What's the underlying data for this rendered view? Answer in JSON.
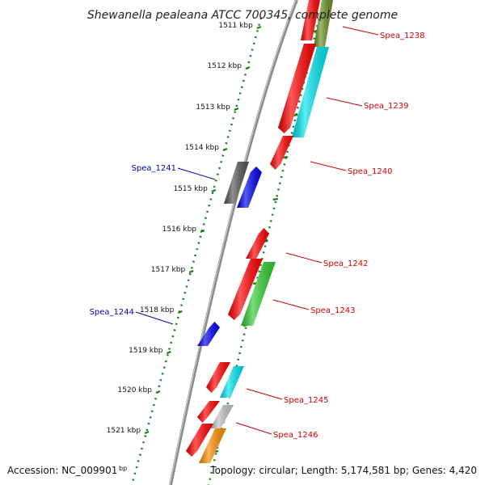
{
  "title": "Shewanella pealeana ATCC 700345, complete genome",
  "footer": {
    "accession": "Accession: NC_009901",
    "bp_suffix": "bp",
    "summary": "Topology: circular; Length: 5,174,581 bp; Genes: 4,420"
  },
  "kbp_labels": [
    "1511 kbp",
    "1512 kbp",
    "1513 kbp",
    "1514 kbp",
    "1515 kbp",
    "1516 kbp",
    "1517 kbp",
    "1518 kbp",
    "1519 kbp",
    "1520 kbp",
    "1521 kbp"
  ],
  "colors": {
    "backbone": "#8c8c8c",
    "ticks": "#1a7a1a",
    "forward_label": "#cc0000",
    "reverse_label": "#0000bb",
    "red": "#ff0000",
    "blue": "#0000ee",
    "dark_gray": "#555555",
    "olive": "#6b8e23",
    "cyan": "#00e5ee",
    "green": "#32cd32",
    "light_gray": "#c0c0c0",
    "orange": "#ff8c00"
  },
  "genes": [
    {
      "label": "Spea_1238",
      "strand": "forward"
    },
    {
      "label": "Spea_1239",
      "strand": "forward"
    },
    {
      "label": "Spea_1240",
      "strand": "forward"
    },
    {
      "label": "Spea_1241",
      "strand": "reverse"
    },
    {
      "label": "Spea_1242",
      "strand": "forward"
    },
    {
      "label": "Spea_1243",
      "strand": "forward"
    },
    {
      "label": "Spea_1244",
      "strand": "reverse"
    },
    {
      "label": "Spea_1245",
      "strand": "forward"
    },
    {
      "label": "Spea_1246",
      "strand": "forward"
    }
  ]
}
